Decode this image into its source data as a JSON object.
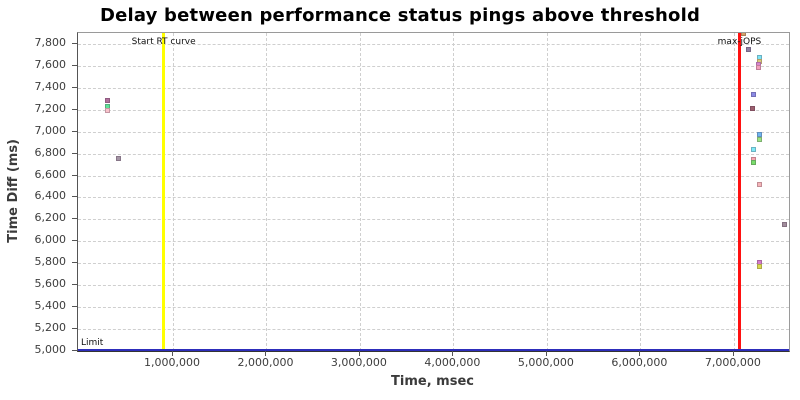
{
  "chart_data": {
    "type": "scatter",
    "title": "Delay between performance status pings above threshold",
    "xlabel": "Time, msec",
    "ylabel": "Time Diff (ms)",
    "xlim": [
      0,
      7590000
    ],
    "ylim": [
      5000,
      7900
    ],
    "x_ticks": [
      1000000,
      2000000,
      3000000,
      4000000,
      5000000,
      6000000,
      7000000
    ],
    "y_ticks": [
      5000,
      5200,
      5400,
      5600,
      5800,
      6000,
      6200,
      6400,
      6600,
      6800,
      7000,
      7200,
      7400,
      7600,
      7800
    ],
    "grid": true,
    "annotations": {
      "vlines": [
        {
          "x": 900000,
          "label": "Start RT curve",
          "color": "#ffff00"
        },
        {
          "x": 7060000,
          "label": "max-jOPS",
          "color": "#ff1111"
        }
      ],
      "hlines": [
        {
          "y": 5000,
          "label": "Limit",
          "color": "#2d2dbb"
        }
      ]
    },
    "series": [
      {
        "name": "ping-delay-points",
        "points": [
          {
            "x": 300000,
            "y": 7280,
            "color": "#b06f9b"
          },
          {
            "x": 300000,
            "y": 7230,
            "color": "#5ee398"
          },
          {
            "x": 300000,
            "y": 7195,
            "color": "#f9c3cb"
          },
          {
            "x": 420000,
            "y": 6755,
            "color": "#a495a5"
          },
          {
            "x": 7100000,
            "y": 7900,
            "color": "#d2a269"
          },
          {
            "x": 7160000,
            "y": 7750,
            "color": "#8d80a3"
          },
          {
            "x": 7270000,
            "y": 7680,
            "color": "#7de4f4"
          },
          {
            "x": 7270000,
            "y": 7640,
            "color": "#dbc97b"
          },
          {
            "x": 7265000,
            "y": 7610,
            "color": "#d687cf"
          },
          {
            "x": 7260000,
            "y": 7585,
            "color": "#f2a0bc"
          },
          {
            "x": 7210000,
            "y": 7340,
            "color": "#8a8ae4"
          },
          {
            "x": 7200000,
            "y": 7215,
            "color": "#9c5f6e"
          },
          {
            "x": 7270000,
            "y": 6970,
            "color": "#6fb6ef"
          },
          {
            "x": 7270000,
            "y": 6925,
            "color": "#99e484"
          },
          {
            "x": 7210000,
            "y": 6835,
            "color": "#7fe9f6"
          },
          {
            "x": 7210000,
            "y": 6750,
            "color": "#f6a6ae"
          },
          {
            "x": 7210000,
            "y": 6715,
            "color": "#79dd6b"
          },
          {
            "x": 7270000,
            "y": 6515,
            "color": "#f5b5b8"
          },
          {
            "x": 7540000,
            "y": 6150,
            "color": "#a18d9c"
          },
          {
            "x": 7270000,
            "y": 5810,
            "color": "#d47cca"
          },
          {
            "x": 7270000,
            "y": 5768,
            "color": "#dbdb4e"
          }
        ]
      }
    ]
  }
}
